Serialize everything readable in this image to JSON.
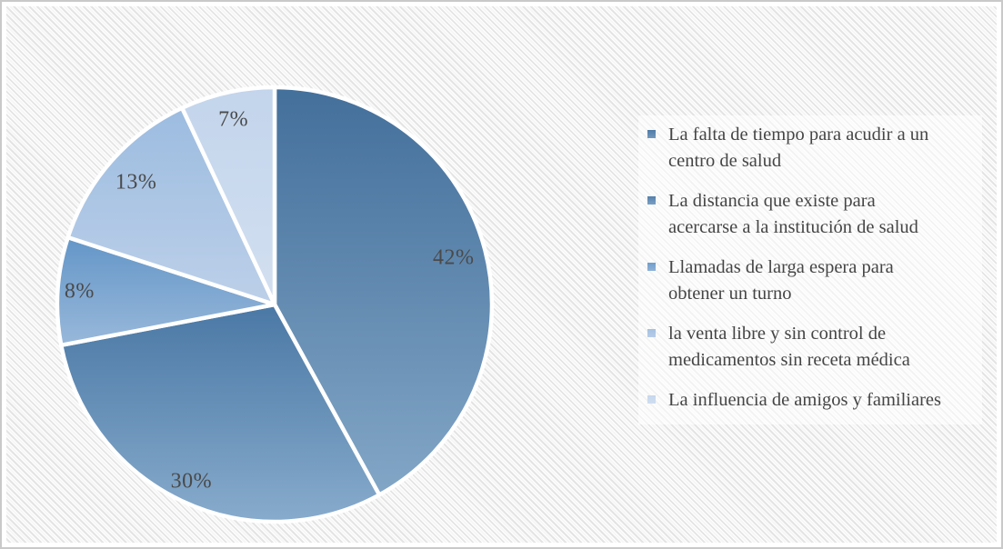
{
  "chart_data": {
    "type": "pie",
    "title": "",
    "legend_position": "right",
    "data_labels": "percent",
    "direction": "clockwise",
    "start_angle_deg": 0,
    "categories": [
      "La falta de tiempo para acudir a un centro de salud",
      "La distancia que existe para acercarse a la institución de salud",
      "Llamadas de larga espera para obtener un turno",
      "la venta libre y sin control de medicamentos sin receta médica",
      "La influencia de amigos y familiares"
    ],
    "values": [
      42,
      30,
      8,
      13,
      7
    ],
    "slices": [
      {
        "label": "La falta de tiempo para acudir a un centro de salud",
        "value": 42,
        "pct_label": "42%",
        "color_top": "#436F9B",
        "color_bottom": "#82A6C6",
        "bullet_color_top": "#4F7BA7",
        "bullet_color_bottom": "#7399BC"
      },
      {
        "label": "La distancia que existe para acercarse a la institución de salud",
        "value": 30,
        "pct_label": "30%",
        "color_top": "#4A78A5",
        "color_bottom": "#87ABCC",
        "bullet_color_top": "#557FAC",
        "bullet_color_bottom": "#7BA0C4"
      },
      {
        "label": "Llamadas de larga espera para obtener un turno",
        "value": 8,
        "pct_label": "8%",
        "color_top": "#6496C8",
        "color_bottom": "#98B8DA",
        "bullet_color_top": "#6F9ECC",
        "bullet_color_bottom": "#8FB2D7"
      },
      {
        "label": "la venta libre y sin control de medicamentos sin receta médica",
        "value": 13,
        "pct_label": "13%",
        "color_top": "#9CBCE0",
        "color_bottom": "#BDD0E9",
        "bullet_color_top": "#A4C1E2",
        "bullet_color_bottom": "#B7CCE7"
      },
      {
        "label": "La influencia de amigos y familiares",
        "value": 7,
        "pct_label": "7%",
        "color_top": "#C3D5EC",
        "color_bottom": "#D2DFF0",
        "bullet_color_top": "#C6D7ED",
        "bullet_color_bottom": "#CFDDEF"
      }
    ],
    "separator_color": "#FFFFFF",
    "label_color": "#4A4A4A",
    "legend_text_color": "#454545"
  }
}
